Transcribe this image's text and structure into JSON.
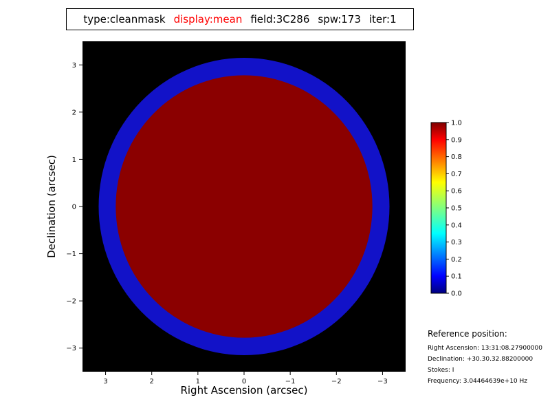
{
  "title_bar": {
    "segments": [
      {
        "text": "type:cleanmask",
        "color": "#000000"
      },
      {
        "text": "display:mean",
        "color": "#ff0000"
      },
      {
        "text": "field:3C286",
        "color": "#000000"
      },
      {
        "text": "spw:173",
        "color": "#000000"
      },
      {
        "text": "iter:1",
        "color": "#000000"
      }
    ]
  },
  "plot": {
    "xlabel": "Right Ascension (arcsec)",
    "ylabel": "Declination (arcsec)",
    "background_color": "#000000",
    "x_tick_values": [
      3,
      2,
      1,
      0,
      -1,
      -2,
      -3
    ],
    "x_tick_labels": [
      "3",
      "2",
      "1",
      "0",
      "−1",
      "−2",
      "−3"
    ],
    "y_tick_values": [
      3,
      2,
      1,
      0,
      -1,
      -2,
      -3
    ],
    "y_tick_labels": [
      "3",
      "2",
      "1",
      "0",
      "−1",
      "−2",
      "−3"
    ]
  },
  "chart_data": {
    "type": "heatmap",
    "title": "type:cleanmask display:mean field:3C286 spw:173 iter:1",
    "xlabel": "Right Ascension (arcsec)",
    "ylabel": "Declination (arcsec)",
    "x_range": [
      3.5,
      -3.5
    ],
    "y_range": [
      -3.5,
      3.5
    ],
    "background_value": 0,
    "colormap": "jet",
    "regions": [
      {
        "shape": "circle",
        "center_x": 0,
        "center_y": 0,
        "radius_arcsec": 3.15,
        "value": 0.08,
        "color": "#1212c8"
      },
      {
        "shape": "circle",
        "center_x": 0,
        "center_y": 0,
        "radius_arcsec": 2.78,
        "value": 1.0,
        "color": "#8b0000"
      }
    ],
    "colorbar": {
      "min": 0.0,
      "max": 1.0,
      "tick_labels": [
        "1.0",
        "0.9",
        "0.8",
        "0.7",
        "0.6",
        "0.5",
        "0.4",
        "0.3",
        "0.2",
        "0.1",
        "0.0"
      ],
      "gradient_stops": [
        {
          "offset": 0.0,
          "color": "#7f0000"
        },
        {
          "offset": 0.1,
          "color": "#ff0000"
        },
        {
          "offset": 0.35,
          "color": "#ffff00"
        },
        {
          "offset": 0.5,
          "color": "#80ff80"
        },
        {
          "offset": 0.65,
          "color": "#00ffff"
        },
        {
          "offset": 0.9,
          "color": "#0000ff"
        },
        {
          "offset": 1.0,
          "color": "#00007f"
        }
      ]
    }
  },
  "reference": {
    "heading": "Reference position:",
    "lines": [
      "Right Ascension: 13:31:08.27900000",
      "Declination: +30.30.32.88200000",
      "Stokes: I",
      "Frequency: 3.04464639e+10 Hz"
    ]
  }
}
